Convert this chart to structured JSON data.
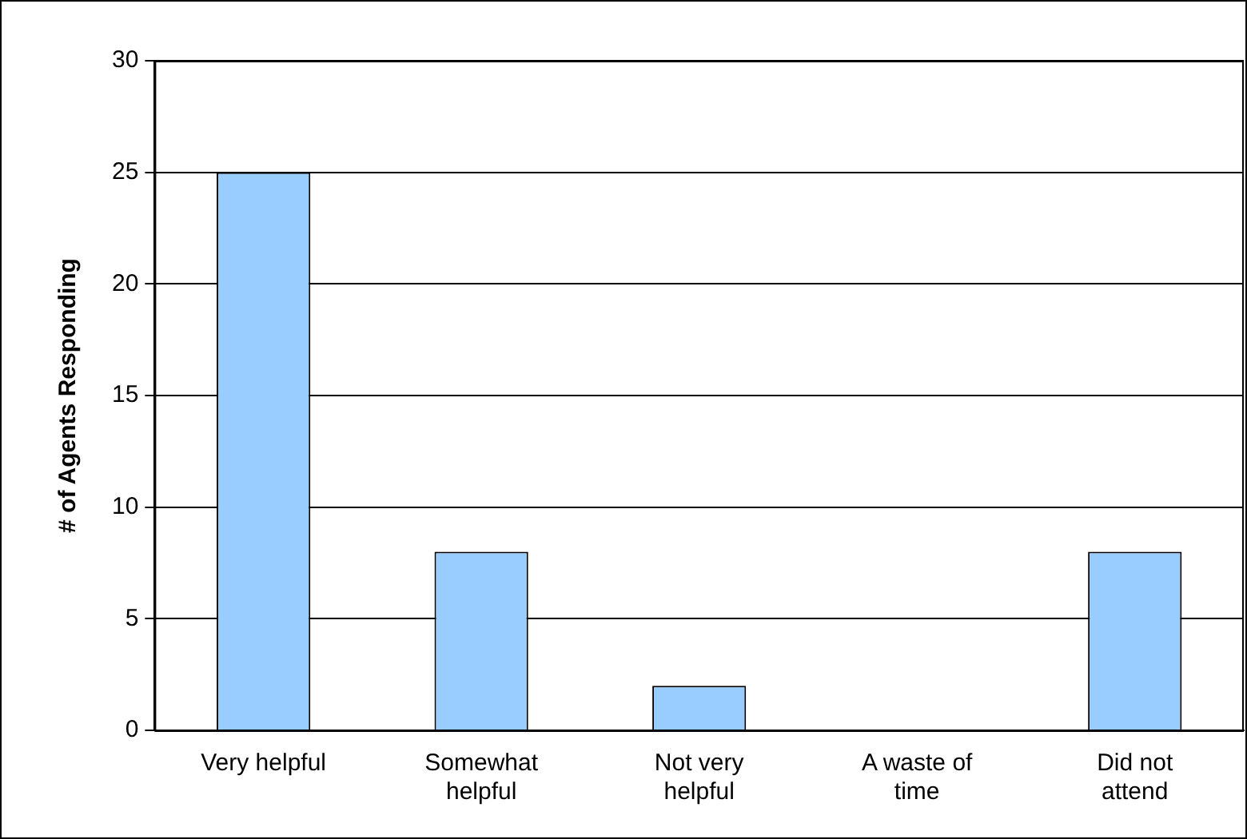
{
  "chart_data": {
    "type": "bar",
    "ylabel": "# of Agents Responding",
    "categories": [
      "Very helpful",
      "Somewhat helpful",
      "Not very helpful",
      "A waste of time",
      "Did not attend"
    ],
    "values": [
      25,
      8,
      2,
      0,
      8
    ],
    "color": "#99ccff",
    "ylim": [
      0,
      30
    ],
    "yticks": [
      0,
      5,
      10,
      15,
      20,
      25,
      30
    ],
    "grid": "y",
    "legend": false
  }
}
